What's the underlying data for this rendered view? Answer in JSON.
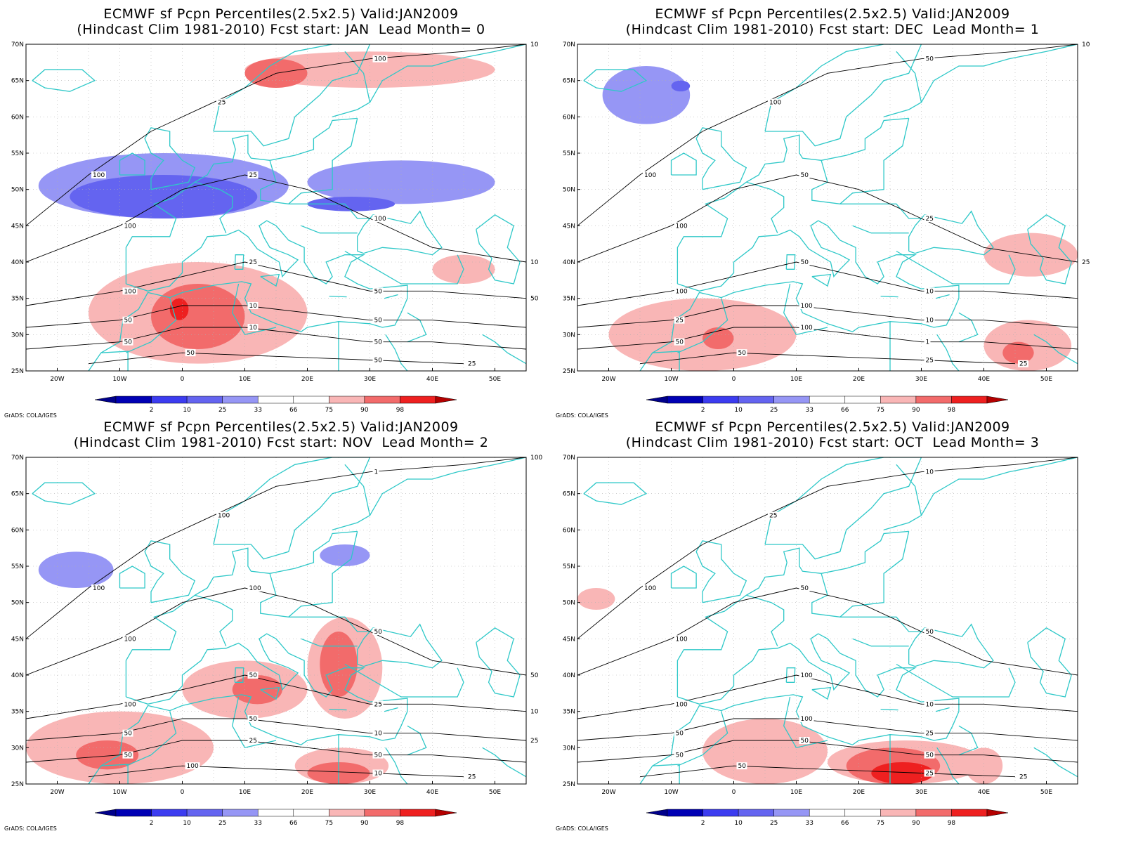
{
  "colors": {
    "c2": "#0000b4",
    "c10": "#3c3cf0",
    "c25": "#6464f0",
    "c33": "#9696f5",
    "mid": "#c8c8fa",
    "c66": "#ffffff",
    "c75": "#f9b6b6",
    "c90": "#f26b6b",
    "c98": "#ee2020",
    "cmax": "#b40000",
    "coast": "#2ec8c8",
    "contour": "#000000",
    "grid": "#b0b0b0"
  },
  "lat_ticks": [
    "70N",
    "65N",
    "60N",
    "55N",
    "50N",
    "45N",
    "40N",
    "35N",
    "30N",
    "25N"
  ],
  "lon_ticks": [
    "20W",
    "10W",
    "0",
    "10E",
    "20E",
    "30E",
    "40E",
    "50E"
  ],
  "colorbar_labels": [
    "2",
    "10",
    "25",
    "33",
    "66",
    "75",
    "90",
    "98"
  ],
  "credit": "GrADS: COLA/IGES",
  "panels": [
    {
      "title_line1": "ECMWF sf Pcpn Percentiles(2.5x2.5) Valid:JAN2009",
      "title_line2": "(Hindcast Clim 1981-2010) Fcst start: JAN  Lead Month= 0",
      "contour_labels": [
        "100",
        "100",
        "100",
        "50",
        "50",
        "50",
        "25",
        "25",
        "25",
        "10",
        "10",
        "50",
        "100",
        "100",
        "50",
        "50",
        "50",
        "25",
        "10",
        "10",
        "50"
      ],
      "shading": [
        {
          "level": "c33",
          "lat": 55,
          "lon": -23,
          "w": 40,
          "h": 9
        },
        {
          "level": "c25",
          "lat": 52,
          "lon": -18,
          "w": 30,
          "h": 6
        },
        {
          "level": "c33",
          "lat": 54,
          "lon": 20,
          "w": 30,
          "h": 6
        },
        {
          "level": "c25",
          "lat": 49,
          "lon": 20,
          "w": 14,
          "h": 2
        },
        {
          "level": "c75",
          "lat": 40,
          "lon": -15,
          "w": 35,
          "h": 14
        },
        {
          "level": "c90",
          "lat": 37,
          "lon": -5,
          "w": 15,
          "h": 9
        },
        {
          "level": "c98",
          "lat": 35,
          "lon": -2,
          "w": 3,
          "h": 3
        },
        {
          "level": "c75",
          "lat": 69,
          "lon": 10,
          "w": 40,
          "h": 5
        },
        {
          "level": "c90",
          "lat": 68,
          "lon": 10,
          "w": 10,
          "h": 4
        },
        {
          "level": "c75",
          "lat": 41,
          "lon": 40,
          "w": 10,
          "h": 4
        }
      ]
    },
    {
      "title_line1": "ECMWF sf Pcpn Percentiles(2.5x2.5) Valid:JAN2009",
      "title_line2": "(Hindcast Clim 1981-2010) Fcst start: DEC  Lead Month= 1",
      "contour_labels": [
        "100",
        "100",
        "100",
        "25",
        "50",
        "50",
        "100",
        "50",
        "50",
        "100",
        "100",
        "25",
        "50",
        "25",
        "10",
        "10",
        "1",
        "25",
        "10",
        "25"
      ],
      "shading": [
        {
          "level": "c33",
          "lat": 67,
          "lon": -21,
          "w": 14,
          "h": 8
        },
        {
          "level": "c25",
          "lat": 65,
          "lon": -10,
          "w": 3,
          "h": 1.5
        },
        {
          "level": "c75",
          "lat": 35,
          "lon": -20,
          "w": 30,
          "h": 10
        },
        {
          "level": "c90",
          "lat": 31,
          "lon": -5,
          "w": 5,
          "h": 3
        },
        {
          "level": "c75",
          "lat": 44,
          "lon": 40,
          "w": 15,
          "h": 6
        },
        {
          "level": "c75",
          "lat": 32,
          "lon": 40,
          "w": 14,
          "h": 7
        },
        {
          "level": "c90",
          "lat": 29,
          "lon": 43,
          "w": 5,
          "h": 3
        }
      ]
    },
    {
      "title_line1": "ECMWF sf Pcpn Percentiles(2.5x2.5) Valid:JAN2009",
      "title_line2": "(Hindcast Clim 1981-2010) Fcst start: NOV  Lead Month= 2",
      "contour_labels": [
        "100",
        "100",
        "100",
        "50",
        "50",
        "100",
        "100",
        "100",
        "50",
        "50",
        "25",
        "10",
        "1",
        "50",
        "25",
        "10",
        "50",
        "25",
        "100",
        "50",
        "10",
        "25"
      ],
      "shading": [
        {
          "level": "c33",
          "lat": 57,
          "lon": -23,
          "w": 12,
          "h": 5
        },
        {
          "level": "c33",
          "lat": 58,
          "lon": 22,
          "w": 8,
          "h": 3
        },
        {
          "level": "c75",
          "lat": 42,
          "lon": 0,
          "w": 20,
          "h": 8
        },
        {
          "level": "c90",
          "lat": 40,
          "lon": 8,
          "w": 8,
          "h": 4
        },
        {
          "level": "c75",
          "lat": 48,
          "lon": 20,
          "w": 12,
          "h": 14
        },
        {
          "level": "c90",
          "lat": 46,
          "lon": 22,
          "w": 6,
          "h": 9
        },
        {
          "level": "c75",
          "lat": 35,
          "lon": -25,
          "w": 30,
          "h": 10
        },
        {
          "level": "c90",
          "lat": 31,
          "lon": -17,
          "w": 10,
          "h": 4
        },
        {
          "level": "c75",
          "lat": 30,
          "lon": 18,
          "w": 15,
          "h": 5
        },
        {
          "level": "c90",
          "lat": 28,
          "lon": 20,
          "w": 10,
          "h": 3
        }
      ]
    },
    {
      "title_line1": "ECMWF sf Pcpn Percentiles(2.5x2.5) Valid:JAN2009",
      "title_line2": "(Hindcast Clim 1981-2010) Fcst start: OCT  Lead Month= 3",
      "contour_labels": [
        "100",
        "100",
        "100",
        "50",
        "50",
        "50",
        "25",
        "50",
        "100",
        "100",
        "50",
        "25",
        "10",
        "50",
        "10",
        "25",
        "50",
        "25"
      ],
      "shading": [
        {
          "level": "c75",
          "lat": 52,
          "lon": -25,
          "w": 6,
          "h": 3
        },
        {
          "level": "c75",
          "lat": 34,
          "lon": -5,
          "w": 20,
          "h": 9
        },
        {
          "level": "c75",
          "lat": 31,
          "lon": 15,
          "w": 25,
          "h": 6
        },
        {
          "level": "c90",
          "lat": 30,
          "lon": 18,
          "w": 15,
          "h": 5
        },
        {
          "level": "c98",
          "lat": 28,
          "lon": 22,
          "w": 10,
          "h": 3
        },
        {
          "level": "c75",
          "lat": 30,
          "lon": 37,
          "w": 6,
          "h": 5
        }
      ]
    }
  ]
}
